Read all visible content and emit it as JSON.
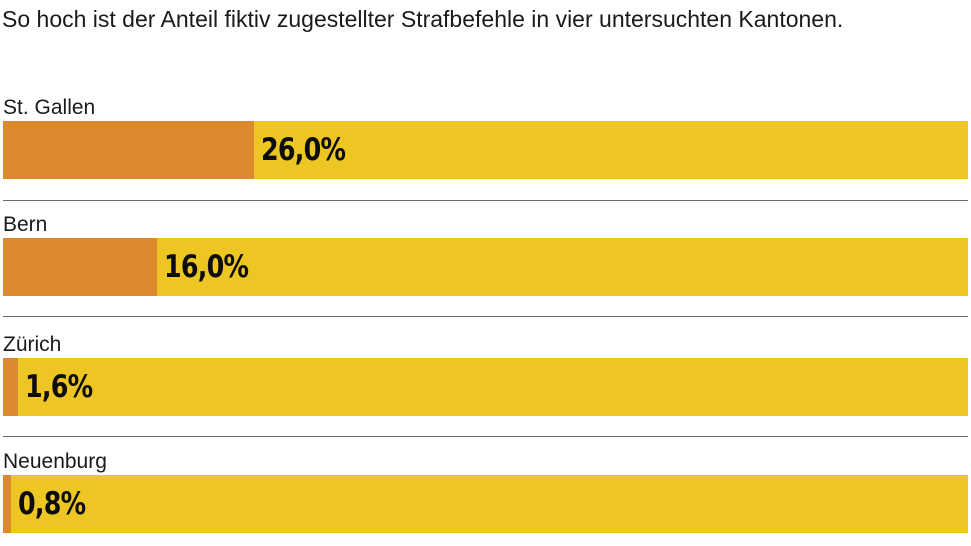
{
  "chart_data": {
    "type": "bar",
    "orientation": "horizontal",
    "title": "So hoch ist der Anteil fiktiv zugestellter Strafbefehle in vier untersuchten Kantonen.",
    "categories": [
      "St. Gallen",
      "Bern",
      "Zürich",
      "Neuenburg"
    ],
    "values": [
      26.0,
      16.0,
      1.6,
      0.8
    ],
    "value_labels": [
      "26,0%",
      "16,0%",
      "1,6%",
      "0,8%"
    ],
    "xlim": [
      0,
      100
    ],
    "unit": "%",
    "grid": false,
    "colors": {
      "bar_fill": "#dd8a2f",
      "bar_track": "#eec623",
      "divider": "#6b6b6b"
    }
  }
}
